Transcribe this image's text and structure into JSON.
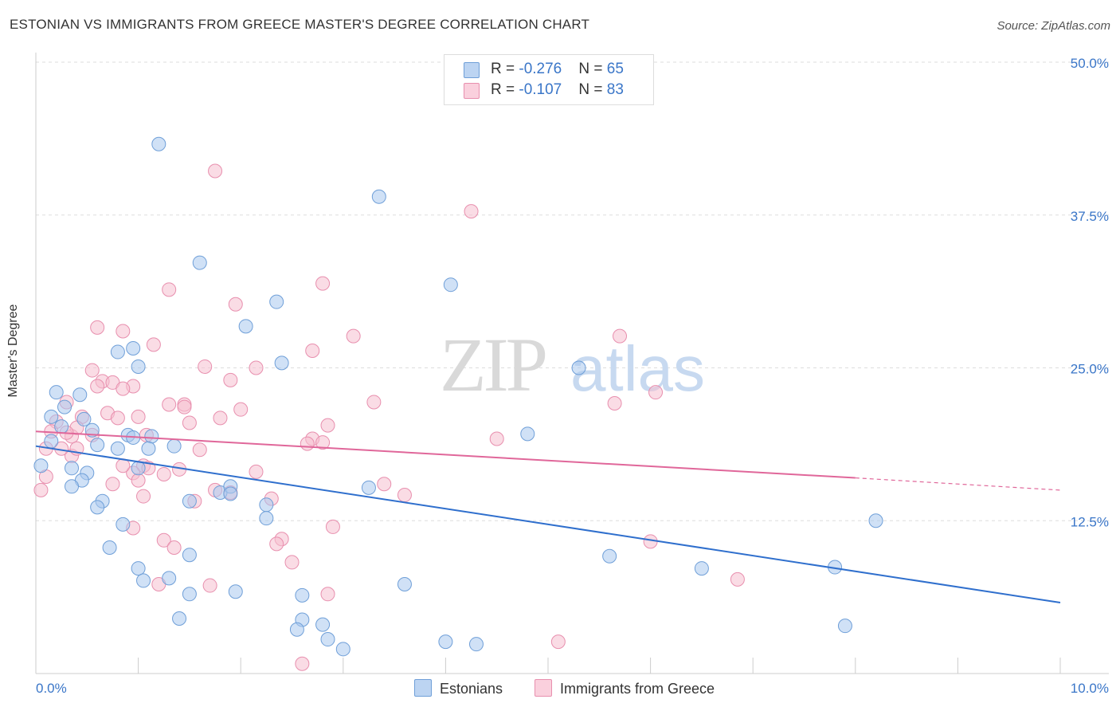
{
  "title": "ESTONIAN VS IMMIGRANTS FROM GREECE MASTER'S DEGREE CORRELATION CHART",
  "source": "Source: ZipAtlas.com",
  "watermark": {
    "zip": "ZIP",
    "atlas": "atlas"
  },
  "legend": {
    "estonians": {
      "r_label": "R = ",
      "r_value": "-0.276",
      "n_label": "N = ",
      "n_value": "65"
    },
    "greece": {
      "r_label": "R = ",
      "r_value": "-0.107",
      "n_label": "N = ",
      "n_value": "83"
    }
  },
  "colors": {
    "estonians_fill": "#a9c8ef",
    "estonians_stroke": "#6f9fd8",
    "estonians_line": "#2f6fcd",
    "greece_fill": "#f6bfd0",
    "greece_stroke": "#e88fae",
    "greece_line": "#e0679a",
    "tick_label": "#3a76c8",
    "grid": "#dddddd"
  },
  "chart_data": {
    "type": "scatter",
    "title": "ESTONIAN VS IMMIGRANTS FROM GREECE MASTER'S DEGREE CORRELATION CHART",
    "xlabel": "",
    "ylabel": "Master's Degree",
    "xlim": [
      0,
      10
    ],
    "ylim": [
      0,
      50
    ],
    "x_tick_labels": [
      "0.0%",
      "10.0%"
    ],
    "y_ticks": [
      12.5,
      25.0,
      37.5,
      50.0
    ],
    "y_tick_labels": [
      "12.5%",
      "25.0%",
      "37.5%",
      "50.0%"
    ],
    "grid": true,
    "legend_position": "top-center",
    "series": [
      {
        "name": "Estonians",
        "r": -0.276,
        "n": 65,
        "trend": {
          "x": [
            0,
            10
          ],
          "y": [
            18.6,
            5.8
          ]
        },
        "points": [
          [
            1.2,
            43.3
          ],
          [
            3.35,
            39.0
          ],
          [
            1.6,
            33.6
          ],
          [
            4.05,
            31.8
          ],
          [
            2.35,
            30.4
          ],
          [
            2.05,
            28.4
          ],
          [
            0.8,
            26.3
          ],
          [
            0.95,
            26.6
          ],
          [
            1.0,
            25.1
          ],
          [
            2.4,
            25.4
          ],
          [
            5.3,
            25.0
          ],
          [
            0.2,
            23.0
          ],
          [
            0.43,
            22.8
          ],
          [
            0.15,
            21.0
          ],
          [
            0.28,
            21.8
          ],
          [
            0.47,
            20.8
          ],
          [
            0.25,
            20.2
          ],
          [
            0.55,
            19.9
          ],
          [
            0.9,
            19.5
          ],
          [
            0.95,
            19.3
          ],
          [
            1.13,
            19.4
          ],
          [
            1.1,
            18.4
          ],
          [
            1.35,
            18.6
          ],
          [
            0.15,
            19.0
          ],
          [
            0.6,
            18.7
          ],
          [
            0.8,
            18.4
          ],
          [
            4.8,
            19.6
          ],
          [
            0.35,
            16.8
          ],
          [
            0.5,
            16.4
          ],
          [
            0.45,
            15.8
          ],
          [
            0.35,
            15.3
          ],
          [
            1.0,
            16.8
          ],
          [
            1.8,
            14.8
          ],
          [
            1.9,
            15.3
          ],
          [
            1.9,
            14.7
          ],
          [
            1.5,
            14.1
          ],
          [
            0.65,
            14.1
          ],
          [
            0.6,
            13.6
          ],
          [
            2.25,
            13.8
          ],
          [
            3.25,
            15.2
          ],
          [
            2.25,
            12.7
          ],
          [
            0.85,
            12.2
          ],
          [
            0.72,
            10.3
          ],
          [
            1.5,
            9.7
          ],
          [
            5.6,
            9.6
          ],
          [
            6.5,
            8.6
          ],
          [
            7.8,
            8.7
          ],
          [
            8.2,
            12.5
          ],
          [
            1.0,
            8.6
          ],
          [
            1.05,
            7.6
          ],
          [
            1.3,
            7.8
          ],
          [
            1.5,
            6.5
          ],
          [
            1.95,
            6.7
          ],
          [
            2.6,
            6.4
          ],
          [
            3.6,
            7.3
          ],
          [
            1.4,
            4.5
          ],
          [
            2.6,
            4.4
          ],
          [
            2.55,
            3.6
          ],
          [
            2.8,
            4.0
          ],
          [
            2.85,
            2.8
          ],
          [
            3.0,
            2.0
          ],
          [
            4.0,
            2.6
          ],
          [
            4.3,
            2.4
          ],
          [
            7.9,
            3.9
          ],
          [
            0.05,
            17.0
          ]
        ]
      },
      {
        "name": "Immigrants from Greece",
        "r": -0.107,
        "n": 83,
        "trend": {
          "x": [
            0,
            8.0
          ],
          "y": [
            19.8,
            16.0
          ]
        },
        "trend_dashed": {
          "x": [
            8.0,
            10
          ],
          "y": [
            16.0,
            15.0
          ]
        },
        "points": [
          [
            1.75,
            41.1
          ],
          [
            4.25,
            37.8
          ],
          [
            2.8,
            31.9
          ],
          [
            1.3,
            31.4
          ],
          [
            1.95,
            30.2
          ],
          [
            0.6,
            28.3
          ],
          [
            0.85,
            28.0
          ],
          [
            3.1,
            27.6
          ],
          [
            5.7,
            27.6
          ],
          [
            1.15,
            26.9
          ],
          [
            2.7,
            26.4
          ],
          [
            1.65,
            25.1
          ],
          [
            2.15,
            25.0
          ],
          [
            0.55,
            24.8
          ],
          [
            0.65,
            23.9
          ],
          [
            0.75,
            23.8
          ],
          [
            0.95,
            23.5
          ],
          [
            0.85,
            23.3
          ],
          [
            1.9,
            24.0
          ],
          [
            6.05,
            23.0
          ],
          [
            0.3,
            22.2
          ],
          [
            3.3,
            22.2
          ],
          [
            1.3,
            22.0
          ],
          [
            1.45,
            22.0
          ],
          [
            5.65,
            22.1
          ],
          [
            0.7,
            21.3
          ],
          [
            0.8,
            20.9
          ],
          [
            0.45,
            21.0
          ],
          [
            1.0,
            21.0
          ],
          [
            2.0,
            21.6
          ],
          [
            1.8,
            20.9
          ],
          [
            0.2,
            20.6
          ],
          [
            0.15,
            19.8
          ],
          [
            0.35,
            19.4
          ],
          [
            0.55,
            19.5
          ],
          [
            1.08,
            19.5
          ],
          [
            0.4,
            20.1
          ],
          [
            0.3,
            19.7
          ],
          [
            2.7,
            19.2
          ],
          [
            4.5,
            19.2
          ],
          [
            2.65,
            18.8
          ],
          [
            2.8,
            18.9
          ],
          [
            0.1,
            18.4
          ],
          [
            0.35,
            17.8
          ],
          [
            0.4,
            18.4
          ],
          [
            1.6,
            18.3
          ],
          [
            1.05,
            17.0
          ],
          [
            1.1,
            16.8
          ],
          [
            0.95,
            16.4
          ],
          [
            1.25,
            16.3
          ],
          [
            1.4,
            16.7
          ],
          [
            2.15,
            16.5
          ],
          [
            1.75,
            15.0
          ],
          [
            0.75,
            15.5
          ],
          [
            1.0,
            15.8
          ],
          [
            1.9,
            14.8
          ],
          [
            3.4,
            15.5
          ],
          [
            3.6,
            14.6
          ],
          [
            1.05,
            14.5
          ],
          [
            1.55,
            14.1
          ],
          [
            2.3,
            14.3
          ],
          [
            0.05,
            15.0
          ],
          [
            0.95,
            11.9
          ],
          [
            1.25,
            10.9
          ],
          [
            1.35,
            10.3
          ],
          [
            2.4,
            11.0
          ],
          [
            2.35,
            10.6
          ],
          [
            2.9,
            12.0
          ],
          [
            6.0,
            10.8
          ],
          [
            2.5,
            9.1
          ],
          [
            1.2,
            7.3
          ],
          [
            1.7,
            7.2
          ],
          [
            2.85,
            6.5
          ],
          [
            6.85,
            7.7
          ],
          [
            5.1,
            2.6
          ],
          [
            2.6,
            0.8
          ],
          [
            0.25,
            18.4
          ],
          [
            1.45,
            21.8
          ],
          [
            0.6,
            23.5
          ],
          [
            2.85,
            20.3
          ],
          [
            1.5,
            20.5
          ],
          [
            0.85,
            17.0
          ],
          [
            0.1,
            16.1
          ]
        ]
      }
    ]
  },
  "bottom_legend": {
    "estonians": "Estonians",
    "greece": "Immigrants from Greece"
  }
}
